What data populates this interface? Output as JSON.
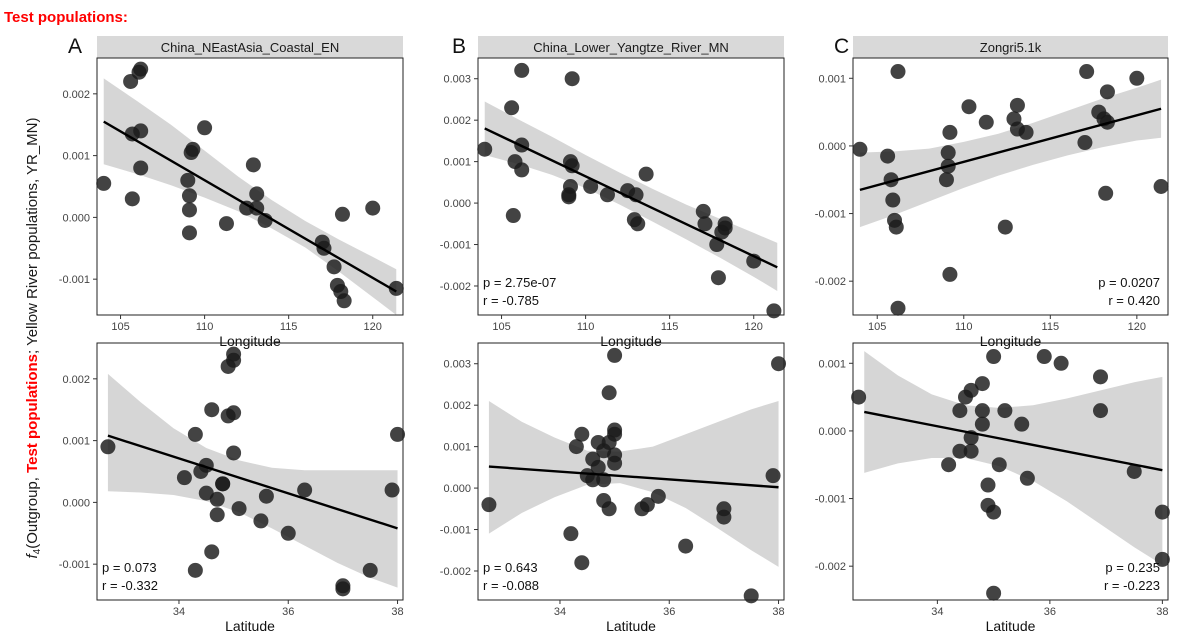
{
  "heading": "Test populations:",
  "y_axis_title": {
    "prefix": "(Outgroup, ",
    "f4_symbol": "f",
    "f4_sub": "4",
    "highlight": "Test populations",
    "suffix": "; Yellow River populations, YR_MN)"
  },
  "colors": {
    "highlight": "#ff0000",
    "points": "#1a1a1a",
    "ribbon": "#d6d6d6",
    "strip": "#d9d9d9"
  },
  "chart_data": [
    {
      "type": "scatter",
      "panel_letter": "A",
      "title": "China_NEastAsia_Coastal_EN",
      "xlabel": "Longitude",
      "xlim": [
        103.6,
        121.8
      ],
      "ylim": [
        -0.00158,
        0.00258
      ],
      "xticks": [
        105,
        110,
        115,
        120
      ],
      "xtick_labels": [
        "105",
        "110",
        "115",
        "120"
      ],
      "yticks": [
        -0.001,
        0,
        0.001,
        0.002
      ],
      "ytick_labels": [
        "-0.001",
        "0.000",
        "0.001",
        "0.002"
      ],
      "grid": false,
      "points": [
        [
          104.0,
          0.00055
        ],
        [
          105.6,
          0.0022
        ],
        [
          106.1,
          0.00235
        ],
        [
          106.2,
          0.0024
        ],
        [
          105.7,
          0.00135
        ],
        [
          106.2,
          0.0014
        ],
        [
          106.2,
          0.0008
        ],
        [
          105.7,
          0.0003
        ],
        [
          109.2,
          0.00105
        ],
        [
          109.3,
          0.0011
        ],
        [
          110.0,
          0.00145
        ],
        [
          109.0,
          0.0006
        ],
        [
          109.1,
          0.00035
        ],
        [
          109.1,
          0.00012
        ],
        [
          109.1,
          -0.00025
        ],
        [
          111.3,
          -0.0001
        ],
        [
          112.9,
          0.00085
        ],
        [
          113.1,
          0.00038
        ],
        [
          112.5,
          0.00015
        ],
        [
          113.1,
          0.00015
        ],
        [
          113.6,
          -5e-05
        ],
        [
          117.0,
          -0.0004
        ],
        [
          117.1,
          -0.0005
        ],
        [
          117.7,
          -0.0008
        ],
        [
          117.9,
          -0.0011
        ],
        [
          118.1,
          -0.0012
        ],
        [
          118.3,
          -0.00135
        ],
        [
          118.2,
          5e-05
        ],
        [
          120.0,
          0.00015
        ],
        [
          121.4,
          -0.00115
        ]
      ],
      "fit": {
        "x": [
          104.0,
          121.4
        ],
        "y": [
          0.00155,
          -0.0012
        ]
      },
      "ribbon": {
        "x": [
          104.0,
          106.0,
          108.0,
          110.0,
          112.0,
          114.0,
          116.0,
          118.0,
          120.0,
          121.4
        ],
        "upper": [
          0.00225,
          0.00188,
          0.0015,
          0.00108,
          0.00066,
          0.00028,
          -6e-05,
          -0.00036,
          -0.00064,
          -0.00084
        ],
        "lower": [
          0.00086,
          0.0007,
          0.00052,
          0.00032,
          0.0001,
          -0.00018,
          -0.00049,
          -0.00088,
          -0.00129,
          -0.00158
        ]
      },
      "stat_p": "",
      "stat_r": ""
    },
    {
      "type": "scatter",
      "panel_letter": "B",
      "title": "China_Lower_Yangtze_River_MN",
      "xlabel": "Longitude",
      "xlim": [
        103.6,
        121.8
      ],
      "ylim": [
        -0.0027,
        0.0035
      ],
      "xticks": [
        105,
        110,
        115,
        120
      ],
      "xtick_labels": [
        "105",
        "110",
        "115",
        "120"
      ],
      "yticks": [
        -0.002,
        -0.001,
        0,
        0.001,
        0.002,
        0.003
      ],
      "ytick_labels": [
        "-0.002",
        "-0.001",
        "0.000",
        "0.001",
        "0.002",
        "0.003"
      ],
      "grid": false,
      "points": [
        [
          104.0,
          0.0013
        ],
        [
          105.6,
          0.0023
        ],
        [
          106.2,
          0.0032
        ],
        [
          105.8,
          0.001
        ],
        [
          106.2,
          0.0014
        ],
        [
          106.2,
          0.0008
        ],
        [
          105.7,
          -0.0003
        ],
        [
          109.2,
          0.003
        ],
        [
          109.1,
          0.001
        ],
        [
          109.2,
          0.0009
        ],
        [
          109.1,
          0.0004
        ],
        [
          109.0,
          0.0002
        ],
        [
          109.0,
          0.00015
        ],
        [
          110.3,
          0.0004
        ],
        [
          111.3,
          0.0002
        ],
        [
          112.5,
          0.0003
        ],
        [
          113.0,
          0.0002
        ],
        [
          112.9,
          -0.0004
        ],
        [
          113.1,
          -0.0005
        ],
        [
          113.6,
          0.0007
        ],
        [
          117.0,
          -0.0002
        ],
        [
          117.1,
          -0.0005
        ],
        [
          117.8,
          -0.001
        ],
        [
          117.9,
          -0.0018
        ],
        [
          118.1,
          -0.0007
        ],
        [
          118.3,
          -0.0005
        ],
        [
          118.3,
          -0.0006
        ],
        [
          120.0,
          -0.0014
        ],
        [
          121.2,
          -0.0026
        ]
      ],
      "fit": {
        "x": [
          104.0,
          121.4
        ],
        "y": [
          0.0018,
          -0.00155
        ]
      },
      "ribbon": {
        "x": [
          104.0,
          106.0,
          108.0,
          110.0,
          112.0,
          114.0,
          116.0,
          118.0,
          120.0,
          121.4
        ],
        "upper": [
          0.00245,
          0.00202,
          0.0016,
          0.00116,
          0.00074,
          0.00034,
          -4e-05,
          -0.00038,
          -0.00072,
          -0.00096
        ],
        "lower": [
          0.00116,
          0.00094,
          0.00068,
          0.00036,
          -3e-05,
          -0.00045,
          -0.00088,
          -0.00132,
          -0.00178,
          -0.00212
        ]
      },
      "stat_p": "p = 2.75e-07",
      "stat_r": "r = -0.785"
    },
    {
      "type": "scatter",
      "panel_letter": "C",
      "title": "Zongri5.1k",
      "xlabel": "Longitude",
      "xlim": [
        103.6,
        121.8
      ],
      "ylim": [
        -0.0025,
        0.0013
      ],
      "xticks": [
        105,
        110,
        115,
        120
      ],
      "xtick_labels": [
        "105",
        "110",
        "115",
        "120"
      ],
      "yticks": [
        -0.002,
        -0.001,
        0,
        0.001
      ],
      "ytick_labels": [
        "-0.002",
        "-0.001",
        "0.000",
        "0.001"
      ],
      "grid": false,
      "points": [
        [
          104.0,
          -5e-05
        ],
        [
          105.6,
          -0.00015
        ],
        [
          105.8,
          -0.0005
        ],
        [
          105.9,
          -0.0008
        ],
        [
          106.0,
          -0.0011
        ],
        [
          106.1,
          -0.0012
        ],
        [
          106.2,
          0.0011
        ],
        [
          106.2,
          -0.0024
        ],
        [
          109.2,
          0.0002
        ],
        [
          109.1,
          -0.0001
        ],
        [
          109.1,
          -0.0003
        ],
        [
          109.0,
          -0.0005
        ],
        [
          109.2,
          -0.0019
        ],
        [
          110.3,
          0.00058
        ],
        [
          111.3,
          0.00035
        ],
        [
          112.4,
          -0.0012
        ],
        [
          112.9,
          0.0004
        ],
        [
          113.1,
          0.0006
        ],
        [
          113.1,
          0.00025
        ],
        [
          113.6,
          0.0002
        ],
        [
          117.0,
          5e-05
        ],
        [
          117.1,
          0.0011
        ],
        [
          117.8,
          0.0005
        ],
        [
          118.1,
          0.0004
        ],
        [
          118.3,
          0.0008
        ],
        [
          118.3,
          0.00035
        ],
        [
          118.2,
          -0.0007
        ],
        [
          120.0,
          0.001
        ],
        [
          121.4,
          -0.0006
        ]
      ],
      "fit": {
        "x": [
          104.0,
          121.4
        ],
        "y": [
          -0.00065,
          0.00055
        ]
      },
      "ribbon": {
        "x": [
          104.0,
          106.0,
          108.0,
          110.0,
          112.0,
          114.0,
          116.0,
          118.0,
          120.0,
          121.4
        ],
        "upper": [
          -0.0001,
          -8e-05,
          -4e-05,
          6e-05,
          0.00018,
          0.00034,
          0.00052,
          0.0007,
          0.00086,
          0.00098
        ],
        "lower": [
          -0.0012,
          -0.00102,
          -0.00082,
          -0.00062,
          -0.00044,
          -0.00028,
          -0.00014,
          -2e-05,
          8e-05,
          0.00012
        ]
      },
      "stat_p": "p = 0.0207",
      "stat_r": "r = 0.420"
    },
    {
      "type": "scatter",
      "panel_letter": "",
      "title": "",
      "xlabel": "Latitude",
      "xlim": [
        32.5,
        38.1
      ],
      "ylim": [
        -0.00158,
        0.00258
      ],
      "xticks": [
        34,
        36,
        38
      ],
      "xtick_labels": [
        "34",
        "36",
        "38"
      ],
      "yticks": [
        -0.001,
        0,
        0.001,
        0.002
      ],
      "ytick_labels": [
        "-0.001",
        "0.000",
        "0.001",
        "0.002"
      ],
      "grid": false,
      "points": [
        [
          32.7,
          0.0009
        ],
        [
          34.3,
          0.0011
        ],
        [
          34.1,
          0.0004
        ],
        [
          34.3,
          -0.0011
        ],
        [
          34.6,
          0.0015
        ],
        [
          34.5,
          0.0006
        ],
        [
          34.4,
          0.0005
        ],
        [
          34.5,
          0.00015
        ],
        [
          34.7,
          5e-05
        ],
        [
          34.6,
          -0.0008
        ],
        [
          34.7,
          -0.0002
        ],
        [
          34.8,
          0.0003
        ],
        [
          34.8,
          0.0003
        ],
        [
          34.9,
          0.0014
        ],
        [
          35.0,
          0.00145
        ],
        [
          34.9,
          0.0022
        ],
        [
          35.0,
          0.0024
        ],
        [
          35.0,
          0.0023
        ],
        [
          35.0,
          0.0008
        ],
        [
          35.1,
          -0.0001
        ],
        [
          35.5,
          -0.0003
        ],
        [
          35.6,
          0.0001
        ],
        [
          36.0,
          -0.0005
        ],
        [
          36.3,
          0.0002
        ],
        [
          37.0,
          -0.00135
        ],
        [
          37.0,
          -0.0014
        ],
        [
          37.5,
          -0.0011
        ],
        [
          38.0,
          0.0011
        ],
        [
          37.9,
          0.0002
        ]
      ],
      "fit": {
        "x": [
          32.7,
          38.0
        ],
        "y": [
          0.00108,
          -0.00042
        ]
      },
      "ribbon": {
        "x": [
          32.7,
          33.3,
          33.9,
          34.5,
          35.1,
          35.7,
          36.3,
          36.9,
          37.5,
          38.0
        ],
        "upper": [
          0.00208,
          0.00162,
          0.0012,
          0.00088,
          0.00068,
          0.00056,
          0.00052,
          0.00052,
          0.00052,
          0.00052
        ],
        "lower": [
          0.00018,
          0.00016,
          0.00012,
          2e-05,
          -0.00016,
          -0.00042,
          -0.0007,
          -0.00098,
          -0.00122,
          -0.00138
        ]
      },
      "stat_p": "p = 0.073",
      "stat_r": "r = -0.332"
    },
    {
      "type": "scatter",
      "panel_letter": "",
      "title": "",
      "xlabel": "Latitude",
      "xlim": [
        32.5,
        38.1
      ],
      "ylim": [
        -0.0027,
        0.0035
      ],
      "xticks": [
        34,
        36,
        38
      ],
      "xtick_labels": [
        "34",
        "36",
        "38"
      ],
      "yticks": [
        -0.002,
        -0.001,
        0,
        0.001,
        0.002,
        0.003
      ],
      "ytick_labels": [
        "-0.002",
        "-0.001",
        "0.000",
        "0.001",
        "0.002",
        "0.003"
      ],
      "grid": false,
      "points": [
        [
          32.7,
          -0.0004
        ],
        [
          34.2,
          -0.0011
        ],
        [
          34.3,
          0.001
        ],
        [
          34.4,
          0.0013
        ],
        [
          34.5,
          0.0003
        ],
        [
          34.6,
          0.0002
        ],
        [
          34.6,
          0.0007
        ],
        [
          34.7,
          0.0011
        ],
        [
          34.7,
          0.0005
        ],
        [
          34.8,
          0.0009
        ],
        [
          34.8,
          0.0002
        ],
        [
          34.8,
          -0.0003
        ],
        [
          34.9,
          0.0023
        ],
        [
          34.9,
          0.0011
        ],
        [
          35.0,
          0.0032
        ],
        [
          35.0,
          0.0014
        ],
        [
          35.0,
          0.0013
        ],
        [
          35.0,
          0.0008
        ],
        [
          35.0,
          0.0006
        ],
        [
          34.9,
          -0.0005
        ],
        [
          34.4,
          -0.0018
        ],
        [
          35.5,
          -0.0005
        ],
        [
          35.6,
          -0.0004
        ],
        [
          35.8,
          -0.0002
        ],
        [
          36.3,
          -0.0014
        ],
        [
          37.0,
          -0.0005
        ],
        [
          37.0,
          -0.0007
        ],
        [
          37.5,
          -0.0026
        ],
        [
          38.0,
          0.003
        ],
        [
          37.9,
          0.0003
        ]
      ],
      "fit": {
        "x": [
          32.7,
          38.0
        ],
        "y": [
          0.00052,
          2e-05
        ]
      },
      "ribbon": {
        "x": [
          32.7,
          33.3,
          33.9,
          34.5,
          35.1,
          35.7,
          36.3,
          36.9,
          37.5,
          38.0
        ],
        "upper": [
          0.0021,
          0.0016,
          0.00122,
          0.0009,
          0.00088,
          0.001,
          0.0013,
          0.0016,
          0.0019,
          0.0021
        ],
        "lower": [
          -0.0011,
          -0.0006,
          -0.00022,
          8e-05,
          0.00012,
          -0.0001,
          -0.00048,
          -0.00098,
          -0.0015,
          -0.0019
        ]
      },
      "stat_p": "p = 0.643",
      "stat_r": "r = -0.088"
    },
    {
      "type": "scatter",
      "panel_letter": "",
      "title": "",
      "xlabel": "Latitude",
      "xlim": [
        32.5,
        38.1
      ],
      "ylim": [
        -0.0025,
        0.0013
      ],
      "xticks": [
        34,
        36,
        38
      ],
      "xtick_labels": [
        "34",
        "36",
        "38"
      ],
      "yticks": [
        -0.002,
        -0.001,
        0,
        0.001
      ],
      "ytick_labels": [
        "-0.002",
        "-0.001",
        "0.000",
        "0.001"
      ],
      "grid": false,
      "points": [
        [
          32.6,
          0.0005
        ],
        [
          34.2,
          -0.0005
        ],
        [
          34.4,
          0.0003
        ],
        [
          34.4,
          -0.0003
        ],
        [
          34.5,
          0.0005
        ],
        [
          34.6,
          0.0006
        ],
        [
          34.6,
          -0.0001
        ],
        [
          34.6,
          -0.0003
        ],
        [
          34.8,
          0.0007
        ],
        [
          34.8,
          0.0003
        ],
        [
          34.8,
          0.0001
        ],
        [
          34.9,
          -0.0008
        ],
        [
          34.9,
          -0.0011
        ],
        [
          35.0,
          0.0011
        ],
        [
          35.0,
          -0.0012
        ],
        [
          35.0,
          -0.0024
        ],
        [
          35.1,
          -0.0005
        ],
        [
          35.2,
          0.0003
        ],
        [
          35.5,
          0.0001
        ],
        [
          35.6,
          -0.0007
        ],
        [
          35.9,
          0.0011
        ],
        [
          36.2,
          0.001
        ],
        [
          36.9,
          0.0008
        ],
        [
          36.9,
          0.0003
        ],
        [
          37.5,
          -0.0006
        ],
        [
          38.0,
          -0.0012
        ],
        [
          38.0,
          -0.0019
        ]
      ],
      "fit": {
        "x": [
          32.7,
          38.0
        ],
        "y": [
          0.00028,
          -0.00058
        ]
      },
      "ribbon": {
        "x": [
          32.7,
          33.3,
          33.9,
          34.5,
          35.1,
          35.7,
          36.3,
          36.9,
          37.5,
          38.0
        ],
        "upper": [
          0.00118,
          0.00082,
          0.00054,
          0.00038,
          0.00034,
          0.00038,
          0.00048,
          0.0006,
          0.00072,
          0.0008
        ],
        "lower": [
          -0.00062,
          -0.00048,
          -0.0004,
          -0.0004,
          -0.00052,
          -0.00074,
          -0.00104,
          -0.00138,
          -0.00172,
          -0.00198
        ]
      },
      "stat_p": "p = 0.235",
      "stat_r": "r = -0.223"
    }
  ]
}
